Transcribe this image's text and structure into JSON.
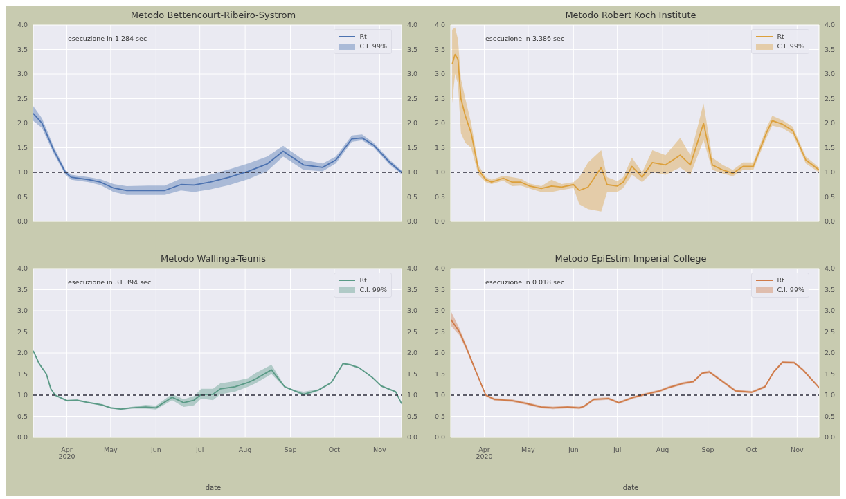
{
  "chart_data": [
    {
      "type": "line",
      "title": "Metodo Bettencourt-Ribeiro-Systrom",
      "annotations": [
        "esecuzione in 1.284 sec",
        "C.I. 99%"
      ],
      "legend": "top right",
      "grid": true,
      "tick_labels": "y",
      "marker": "none",
      "line_style": "solid",
      "xlim": [
        "2020-03-09",
        "2020-11-16"
      ],
      "xticks": [
        {
          "value": "2020-04-01",
          "label": null
        },
        {
          "value": "2020-05-01",
          "label": null
        },
        {
          "value": "2020-06-01",
          "label": null
        },
        {
          "value": "2020-07-01",
          "label": null
        },
        {
          "value": "2020-08-01",
          "label": null
        },
        {
          "value": "2020-09-01",
          "label": null
        },
        {
          "value": "2020-10-01",
          "label": null
        },
        {
          "value": "2020-11-01",
          "label": null
        }
      ],
      "ylim": [
        0,
        4
      ],
      "yticks": [
        {
          "value": 0,
          "label": "0.0"
        },
        {
          "value": 0.5,
          "label": "0.5"
        },
        {
          "value": 1,
          "label": "1.0"
        },
        {
          "value": 1.5,
          "label": "1.5"
        },
        {
          "value": 2,
          "label": "2.0"
        },
        {
          "value": 2.5,
          "label": "2.5"
        },
        {
          "value": 3,
          "label": "3.0"
        },
        {
          "value": 3.5,
          "label": "3.5"
        },
        {
          "value": 4,
          "label": "4.0"
        }
      ],
      "y2lim": [
        0,
        4
      ],
      "y2ticks": [
        {
          "value": 0,
          "label": "0.0"
        },
        {
          "value": 0.5,
          "label": "0.5"
        },
        {
          "value": 1,
          "label": "1.0"
        },
        {
          "value": 1.5,
          "label": "1.5"
        },
        {
          "value": 2,
          "label": "2.0"
        },
        {
          "value": 2.5,
          "label": "2.5"
        },
        {
          "value": 3,
          "label": "3.0"
        },
        {
          "value": 3.5,
          "label": "3.5"
        },
        {
          "value": 4,
          "label": "4.0"
        }
      ],
      "ref_lines": [
        {
          "axis": "y",
          "value": 1,
          "color": "#2a2a3a",
          "line_style": "dashed"
        }
      ],
      "x": [
        "2020-03-09",
        "2020-03-15",
        "2020-03-23",
        "2020-03-31",
        "2020-04-04",
        "2020-04-16",
        "2020-04-24",
        "2020-05-03",
        "2020-05-12",
        "2020-05-27",
        "2020-06-07",
        "2020-06-18",
        "2020-06-27",
        "2020-07-08",
        "2020-07-21",
        "2020-08-03",
        "2020-08-16",
        "2020-08-27",
        "2020-09-10",
        "2020-09-23",
        "2020-10-02",
        "2020-10-13",
        "2020-10-20",
        "2020-10-28",
        "2020-11-08",
        "2020-11-16"
      ],
      "series": [
        {
          "name": "Rt",
          "color": "#4c72b0",
          "values": [
            2.2,
            2.0,
            1.45,
            1.0,
            0.9,
            0.85,
            0.8,
            0.68,
            0.63,
            0.63,
            0.63,
            0.75,
            0.74,
            0.8,
            0.9,
            1.02,
            1.17,
            1.43,
            1.15,
            1.1,
            1.25,
            1.68,
            1.7,
            1.55,
            1.2,
            1.0
          ],
          "lower": [
            2.05,
            1.9,
            1.38,
            0.95,
            0.85,
            0.8,
            0.74,
            0.6,
            0.54,
            0.54,
            0.54,
            0.63,
            0.6,
            0.65,
            0.74,
            0.86,
            1.02,
            1.32,
            1.05,
            1.02,
            1.18,
            1.62,
            1.65,
            1.5,
            1.15,
            0.96
          ],
          "upper": [
            2.35,
            2.1,
            1.52,
            1.05,
            0.95,
            0.9,
            0.86,
            0.76,
            0.72,
            0.73,
            0.73,
            0.87,
            0.88,
            0.95,
            1.06,
            1.18,
            1.32,
            1.54,
            1.25,
            1.18,
            1.32,
            1.75,
            1.77,
            1.6,
            1.25,
            1.04
          ]
        }
      ]
    },
    {
      "type": "line",
      "title": "Metodo Robert Koch Institute",
      "annotations": [
        "esecuzione in 3.386 sec",
        "C.I. 99%"
      ],
      "legend": "top right",
      "grid": true,
      "tick_labels": "y",
      "marker": "none",
      "line_style": "solid",
      "xlim": [
        "2020-03-09",
        "2020-11-16"
      ],
      "xticks": [
        {
          "value": "2020-04-01",
          "label": null
        },
        {
          "value": "2020-05-01",
          "label": null
        },
        {
          "value": "2020-06-01",
          "label": null
        },
        {
          "value": "2020-07-01",
          "label": null
        },
        {
          "value": "2020-08-01",
          "label": null
        },
        {
          "value": "2020-09-01",
          "label": null
        },
        {
          "value": "2020-10-01",
          "label": null
        },
        {
          "value": "2020-11-01",
          "label": null
        }
      ],
      "ylim": [
        0,
        4
      ],
      "yticks": [
        {
          "value": 0,
          "label": "0.0"
        },
        {
          "value": 0.5,
          "label": "0.5"
        },
        {
          "value": 1,
          "label": "1.0"
        },
        {
          "value": 1.5,
          "label": "1.5"
        },
        {
          "value": 2,
          "label": "2.0"
        },
        {
          "value": 2.5,
          "label": "2.5"
        },
        {
          "value": 3,
          "label": "3.0"
        },
        {
          "value": 3.5,
          "label": "3.5"
        },
        {
          "value": 4,
          "label": "4.0"
        }
      ],
      "y2lim": [
        0,
        4
      ],
      "y2ticks": [
        {
          "value": 0,
          "label": "0.0"
        },
        {
          "value": 0.5,
          "label": "0.5"
        },
        {
          "value": 1,
          "label": "1.0"
        },
        {
          "value": 1.5,
          "label": "1.5"
        },
        {
          "value": 2,
          "label": "2.0"
        },
        {
          "value": 2.5,
          "label": "2.5"
        },
        {
          "value": 3,
          "label": "3.0"
        },
        {
          "value": 3.5,
          "label": "3.5"
        },
        {
          "value": 4,
          "label": "4.0"
        }
      ],
      "ref_lines": [
        {
          "axis": "y",
          "value": 1,
          "color": "#2a2a3a",
          "line_style": "dashed"
        }
      ],
      "x": [
        "2020-03-10",
        "2020-03-12",
        "2020-03-14",
        "2020-03-16",
        "2020-03-19",
        "2020-03-23",
        "2020-03-28",
        "2020-04-02",
        "2020-04-06",
        "2020-04-14",
        "2020-04-20",
        "2020-04-26",
        "2020-05-02",
        "2020-05-10",
        "2020-05-17",
        "2020-05-24",
        "2020-06-01",
        "2020-06-05",
        "2020-06-11",
        "2020-06-20",
        "2020-06-24",
        "2020-07-01",
        "2020-07-05",
        "2020-07-11",
        "2020-07-18",
        "2020-07-25",
        "2020-08-03",
        "2020-08-13",
        "2020-08-20",
        "2020-08-29",
        "2020-09-04",
        "2020-09-11",
        "2020-09-18",
        "2020-09-25",
        "2020-10-02",
        "2020-10-11",
        "2020-10-15",
        "2020-10-22",
        "2020-10-29",
        "2020-11-07",
        "2020-11-16"
      ],
      "series": [
        {
          "name": "Rt",
          "color": "#dca03c",
          "values": [
            3.2,
            3.4,
            3.3,
            2.5,
            2.15,
            1.8,
            1.05,
            0.85,
            0.8,
            0.88,
            0.8,
            0.8,
            0.72,
            0.67,
            0.72,
            0.7,
            0.75,
            0.63,
            0.7,
            1.1,
            0.75,
            0.72,
            0.8,
            1.12,
            0.9,
            1.2,
            1.15,
            1.35,
            1.15,
            2.0,
            1.15,
            1.05,
            0.98,
            1.12,
            1.12,
            1.8,
            2.05,
            1.98,
            1.85,
            1.25,
            1.05
          ],
          "lower": [
            2.4,
            3.0,
            2.8,
            1.8,
            1.6,
            1.5,
            0.95,
            0.8,
            0.76,
            0.83,
            0.72,
            0.73,
            0.67,
            0.6,
            0.6,
            0.64,
            0.68,
            0.35,
            0.25,
            0.2,
            0.6,
            0.6,
            0.68,
            0.95,
            0.8,
            1.0,
            0.95,
            1.1,
            0.95,
            1.65,
            1.05,
            0.98,
            0.92,
            1.05,
            1.05,
            1.7,
            1.95,
            1.9,
            1.77,
            1.18,
            1.0
          ],
          "upper": [
            3.9,
            3.95,
            3.7,
            2.9,
            2.5,
            2.0,
            1.15,
            0.9,
            0.85,
            0.93,
            0.9,
            0.87,
            0.77,
            0.72,
            0.85,
            0.76,
            0.8,
            0.9,
            1.2,
            1.45,
            0.9,
            0.82,
            0.9,
            1.3,
            1.0,
            1.45,
            1.35,
            1.7,
            1.35,
            2.4,
            1.3,
            1.15,
            1.05,
            1.2,
            1.2,
            1.9,
            2.15,
            2.06,
            1.93,
            1.32,
            1.1
          ]
        }
      ]
    },
    {
      "type": "line",
      "title": "Metodo Wallinga-Teunis",
      "annotations": [
        "esecuzione in 31.394 sec",
        "C.I. 99%"
      ],
      "legend": "top right",
      "grid": true,
      "marker": "none",
      "line_style": "solid",
      "xlabel": "date",
      "xlim": [
        "2020-03-09",
        "2020-11-16"
      ],
      "xticks": [
        {
          "value": "2020-04-01",
          "label": "Apr\n2020"
        },
        {
          "value": "2020-05-01",
          "label": "May"
        },
        {
          "value": "2020-06-01",
          "label": "Jun"
        },
        {
          "value": "2020-07-01",
          "label": "Jul"
        },
        {
          "value": "2020-08-01",
          "label": "Aug"
        },
        {
          "value": "2020-09-01",
          "label": "Sep"
        },
        {
          "value": "2020-10-01",
          "label": "Oct"
        },
        {
          "value": "2020-11-01",
          "label": "Nov"
        }
      ],
      "ylim": [
        0,
        4
      ],
      "yticks": [
        {
          "value": 0,
          "label": "0.0"
        },
        {
          "value": 0.5,
          "label": "0.5"
        },
        {
          "value": 1,
          "label": "1.0"
        },
        {
          "value": 1.5,
          "label": "1.5"
        },
        {
          "value": 2,
          "label": "2.0"
        },
        {
          "value": 2.5,
          "label": "2.5"
        },
        {
          "value": 3,
          "label": "3.0"
        },
        {
          "value": 3.5,
          "label": "3.5"
        },
        {
          "value": 4,
          "label": "4.0"
        }
      ],
      "y2lim": [
        0,
        4
      ],
      "y2ticks": [
        {
          "value": 0,
          "label": "0.0"
        },
        {
          "value": 0.5,
          "label": "0.5"
        },
        {
          "value": 1,
          "label": "1.0"
        },
        {
          "value": 1.5,
          "label": "1.5"
        },
        {
          "value": 2,
          "label": "2.0"
        },
        {
          "value": 2.5,
          "label": "2.5"
        },
        {
          "value": 3,
          "label": "3.0"
        },
        {
          "value": 3.5,
          "label": "3.5"
        },
        {
          "value": 4,
          "label": "4.0"
        }
      ],
      "ref_lines": [
        {
          "axis": "y",
          "value": 1,
          "color": "#2a2a3a",
          "line_style": "dashed"
        }
      ],
      "x": [
        "2020-03-09",
        "2020-03-13",
        "2020-03-18",
        "2020-03-21",
        "2020-03-24",
        "2020-04-01",
        "2020-04-08",
        "2020-04-15",
        "2020-04-25",
        "2020-05-01",
        "2020-05-08",
        "2020-05-15",
        "2020-05-25",
        "2020-06-01",
        "2020-06-09",
        "2020-06-12",
        "2020-06-20",
        "2020-06-27",
        "2020-07-02",
        "2020-07-10",
        "2020-07-15",
        "2020-07-25",
        "2020-08-03",
        "2020-08-08",
        "2020-08-19",
        "2020-08-28",
        "2020-09-04",
        "2020-09-10",
        "2020-09-20",
        "2020-09-29",
        "2020-10-07",
        "2020-10-12",
        "2020-10-18",
        "2020-10-27",
        "2020-11-02",
        "2020-11-12",
        "2020-11-16"
      ],
      "series": [
        {
          "name": "Rt",
          "color": "#5a9a86",
          "values": [
            2.05,
            1.75,
            1.5,
            1.15,
            1.0,
            0.87,
            0.88,
            0.83,
            0.77,
            0.7,
            0.67,
            0.7,
            0.72,
            0.7,
            0.88,
            0.95,
            0.82,
            0.88,
            1.02,
            1.02,
            1.15,
            1.2,
            1.3,
            1.38,
            1.6,
            1.2,
            1.1,
            1.02,
            1.12,
            1.3,
            1.75,
            1.72,
            1.65,
            1.42,
            1.22,
            1.08,
            0.8
          ],
          "lower": [
            2.03,
            1.73,
            1.48,
            1.13,
            0.98,
            0.85,
            0.86,
            0.81,
            0.75,
            0.68,
            0.65,
            0.68,
            0.68,
            0.66,
            0.82,
            0.88,
            0.72,
            0.76,
            0.92,
            0.88,
            1.02,
            1.08,
            1.2,
            1.28,
            1.5,
            1.18,
            1.08,
            0.98,
            1.1,
            1.28,
            1.73,
            1.7,
            1.63,
            1.4,
            1.2,
            1.06,
            0.78
          ],
          "upper": [
            2.07,
            1.77,
            1.52,
            1.17,
            1.02,
            0.89,
            0.9,
            0.85,
            0.79,
            0.72,
            0.69,
            0.72,
            0.77,
            0.75,
            0.95,
            1.03,
            0.9,
            0.98,
            1.15,
            1.15,
            1.28,
            1.33,
            1.4,
            1.52,
            1.72,
            1.22,
            1.12,
            1.08,
            1.14,
            1.32,
            1.77,
            1.74,
            1.67,
            1.44,
            1.24,
            1.1,
            0.82
          ]
        }
      ]
    },
    {
      "type": "line",
      "title": "Metodo EpiEstim Imperial College",
      "annotations": [
        "esecuzione in 0.018 sec",
        "C.I. 99%"
      ],
      "legend": "top right",
      "grid": true,
      "marker": "none",
      "line_style": "solid",
      "xlabel": "date",
      "xlim": [
        "2020-03-09",
        "2020-11-16"
      ],
      "xticks": [
        {
          "value": "2020-04-01",
          "label": "Apr\n2020"
        },
        {
          "value": "2020-05-01",
          "label": "May"
        },
        {
          "value": "2020-06-01",
          "label": "Jun"
        },
        {
          "value": "2020-07-01",
          "label": "Jul"
        },
        {
          "value": "2020-08-01",
          "label": "Aug"
        },
        {
          "value": "2020-09-01",
          "label": "Sep"
        },
        {
          "value": "2020-10-01",
          "label": "Oct"
        },
        {
          "value": "2020-11-01",
          "label": "Nov"
        }
      ],
      "ylim": [
        0,
        4
      ],
      "yticks": [
        {
          "value": 0,
          "label": "0.0"
        },
        {
          "value": 0.5,
          "label": "0.5"
        },
        {
          "value": 1,
          "label": "1.0"
        },
        {
          "value": 1.5,
          "label": "1.5"
        },
        {
          "value": 2,
          "label": "2.0"
        },
        {
          "value": 2.5,
          "label": "2.5"
        },
        {
          "value": 3,
          "label": "3.0"
        },
        {
          "value": 3.5,
          "label": "3.5"
        },
        {
          "value": 4,
          "label": "4.0"
        }
      ],
      "y2lim": [
        0,
        4
      ],
      "y2ticks": [
        {
          "value": 0,
          "label": "0.0"
        },
        {
          "value": 0.5,
          "label": "0.5"
        },
        {
          "value": 1,
          "label": "1.0"
        },
        {
          "value": 1.5,
          "label": "1.5"
        },
        {
          "value": 2,
          "label": "2.0"
        },
        {
          "value": 2.5,
          "label": "2.5"
        },
        {
          "value": 3,
          "label": "3.0"
        },
        {
          "value": 3.5,
          "label": "3.5"
        },
        {
          "value": 4,
          "label": "4.0"
        }
      ],
      "ref_lines": [
        {
          "axis": "y",
          "value": 1,
          "color": "#2a2a3a",
          "line_style": "dashed"
        }
      ],
      "x": [
        "2020-03-09",
        "2020-03-15",
        "2020-03-20",
        "2020-03-27",
        "2020-04-02",
        "2020-04-08",
        "2020-04-20",
        "2020-04-30",
        "2020-05-10",
        "2020-05-18",
        "2020-05-28",
        "2020-06-05",
        "2020-06-08",
        "2020-06-15",
        "2020-06-25",
        "2020-07-02",
        "2020-07-12",
        "2020-07-20",
        "2020-07-30",
        "2020-08-05",
        "2020-08-15",
        "2020-08-22",
        "2020-08-28",
        "2020-09-02",
        "2020-09-10",
        "2020-09-20",
        "2020-10-01",
        "2020-10-10",
        "2020-10-16",
        "2020-10-22",
        "2020-10-30",
        "2020-11-05",
        "2020-11-16"
      ],
      "series": [
        {
          "name": "Rt",
          "color": "#cf7a48",
          "values": [
            2.8,
            2.5,
            2.1,
            1.5,
            1.0,
            0.9,
            0.87,
            0.8,
            0.72,
            0.7,
            0.72,
            0.7,
            0.73,
            0.9,
            0.92,
            0.82,
            0.95,
            1.02,
            1.1,
            1.18,
            1.28,
            1.32,
            1.52,
            1.55,
            1.35,
            1.1,
            1.07,
            1.2,
            1.55,
            1.78,
            1.77,
            1.6,
            1.18
          ],
          "lower": [
            2.65,
            2.42,
            2.04,
            1.46,
            0.97,
            0.87,
            0.84,
            0.77,
            0.69,
            0.67,
            0.69,
            0.67,
            0.7,
            0.87,
            0.89,
            0.79,
            0.92,
            0.99,
            1.07,
            1.15,
            1.25,
            1.29,
            1.49,
            1.52,
            1.32,
            1.07,
            1.04,
            1.17,
            1.52,
            1.75,
            1.74,
            1.57,
            1.15
          ],
          "upper": [
            3.0,
            2.58,
            2.16,
            1.54,
            1.03,
            0.93,
            0.9,
            0.83,
            0.75,
            0.73,
            0.75,
            0.73,
            0.76,
            0.93,
            0.95,
            0.85,
            0.98,
            1.05,
            1.13,
            1.21,
            1.31,
            1.35,
            1.55,
            1.58,
            1.38,
            1.13,
            1.1,
            1.23,
            1.58,
            1.81,
            1.8,
            1.63,
            1.21
          ]
        }
      ]
    }
  ]
}
